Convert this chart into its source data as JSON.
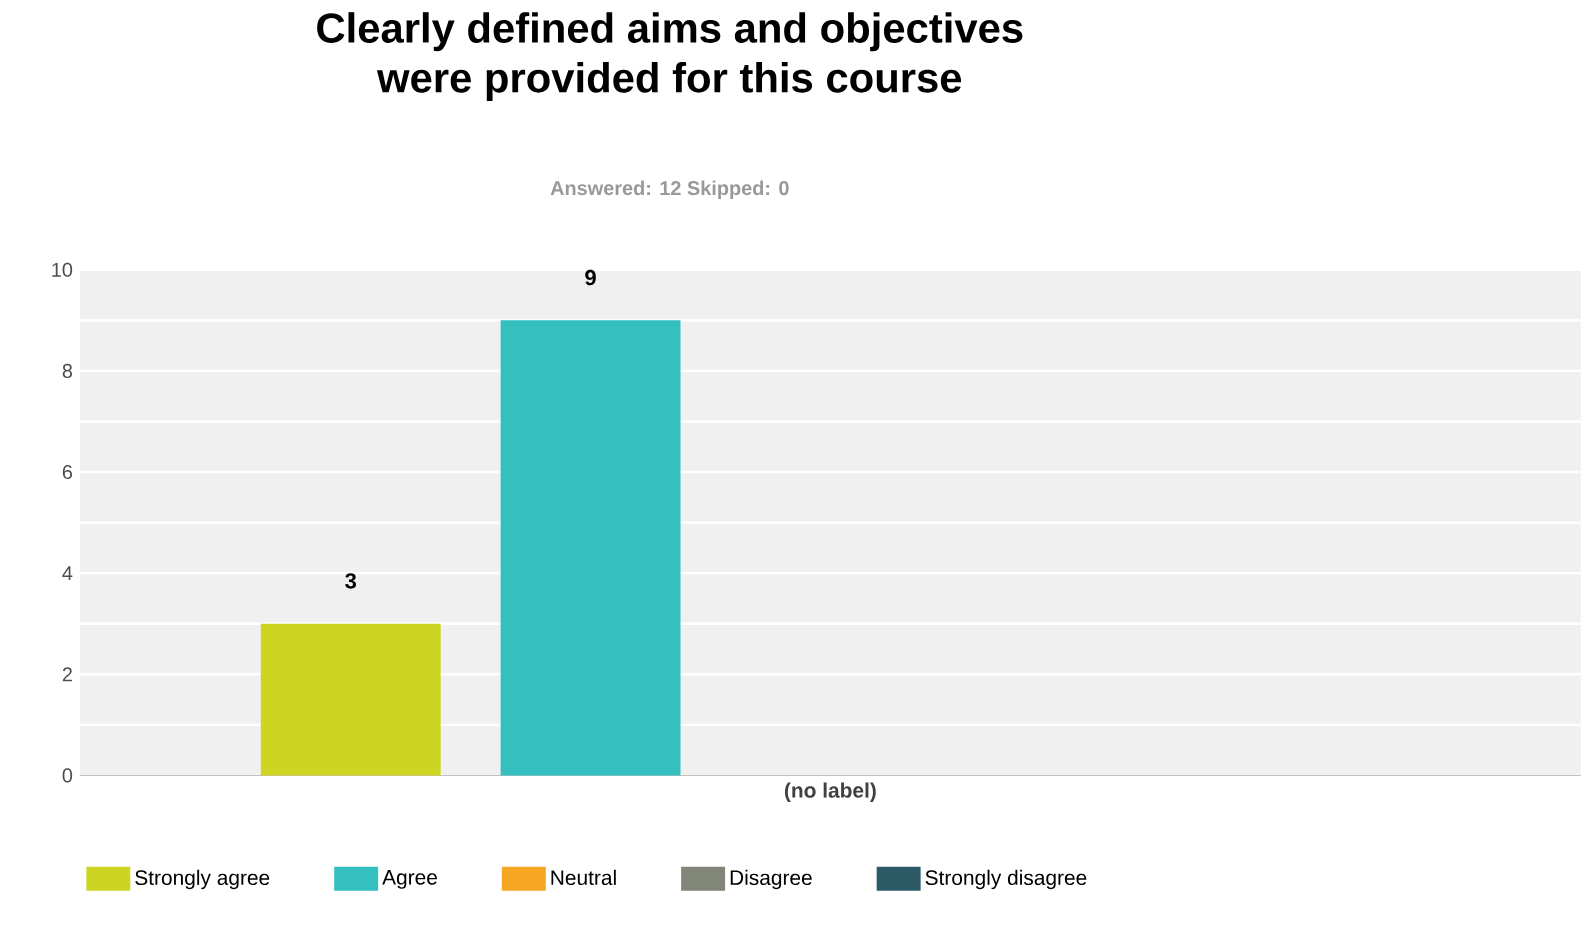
{
  "chart_data": {
    "type": "bar",
    "title": "Clearly defined aims and objectives were provided for this course",
    "subtitle": "Answered: 12    Skipped: 0",
    "categories": [
      "(no label)"
    ],
    "series": [
      {
        "name": "Strongly agree",
        "color": "#cdd422",
        "values": [
          3
        ],
        "value_labels": [
          "3"
        ]
      },
      {
        "name": "Agree",
        "color": "#35bfbf",
        "values": [
          9
        ],
        "value_labels": [
          "9"
        ]
      },
      {
        "name": "Neutral",
        "color": "#f5a623",
        "values": [
          0
        ],
        "value_labels": [
          null
        ]
      },
      {
        "name": "Disagree",
        "color": "#818676",
        "values": [
          0
        ],
        "value_labels": [
          null
        ]
      },
      {
        "name": "Strongly disagree",
        "color": "#2b5a66",
        "values": [
          0
        ],
        "value_labels": [
          null
        ]
      }
    ],
    "ylim": [
      0,
      10
    ],
    "yticks": [
      0,
      2,
      4,
      6,
      8,
      10
    ],
    "grid": "y",
    "legend": "bottom left"
  }
}
